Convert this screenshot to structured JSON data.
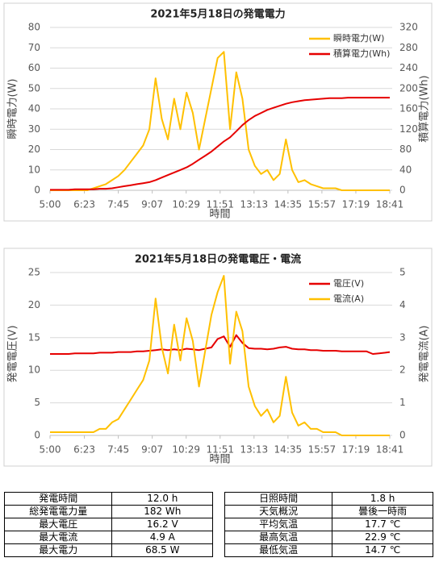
{
  "chart_data": [
    {
      "type": "line",
      "title": "2021年5月18日の発電電力",
      "xlabel": "時間",
      "ylabel": "瞬時電力(W)",
      "y2label": "積算電力(Wh)",
      "x": [
        300,
        315,
        330,
        345,
        360,
        375,
        390,
        405,
        420,
        435,
        450,
        465,
        480,
        495,
        510,
        525,
        540,
        555,
        570,
        585,
        600,
        615,
        630,
        645,
        660,
        675,
        690,
        705,
        720,
        735,
        750,
        765,
        780,
        795,
        810,
        825,
        840,
        855,
        870,
        885,
        900,
        915,
        930,
        945,
        960,
        975,
        990,
        1005,
        1020,
        1035,
        1050,
        1065,
        1080,
        1095,
        1110,
        1121
      ],
      "xlim": [
        300,
        1121
      ],
      "xticks": [
        {
          "value": 300,
          "label": "5:00"
        },
        {
          "value": 383,
          "label": "6:23"
        },
        {
          "value": 465,
          "label": "7:45"
        },
        {
          "value": 547,
          "label": "9:07"
        },
        {
          "value": 629,
          "label": "10:29"
        },
        {
          "value": 711,
          "label": "11:51"
        },
        {
          "value": 793,
          "label": "13:13"
        },
        {
          "value": 875,
          "label": "14:35"
        },
        {
          "value": 957,
          "label": "15:57"
        },
        {
          "value": 1039,
          "label": "17:19"
        },
        {
          "value": 1121,
          "label": "18:41"
        }
      ],
      "ylim": [
        0,
        80
      ],
      "yticks": [
        0,
        10,
        20,
        30,
        40,
        50,
        60,
        70,
        80
      ],
      "y2lim": [
        0,
        320
      ],
      "y2ticks": [
        0,
        40,
        80,
        120,
        160,
        200,
        240,
        280,
        320
      ],
      "grid": true,
      "legend": "upper right",
      "series": [
        {
          "name": "瞬時電力(W)",
          "color": "#ffc000",
          "values": [
            0,
            0,
            0,
            0,
            0,
            0,
            0,
            1,
            2,
            3,
            5,
            7,
            10,
            14,
            18,
            22,
            30,
            55,
            35,
            25,
            45,
            30,
            48,
            38,
            20,
            35,
            50,
            65,
            68,
            30,
            58,
            45,
            20,
            12,
            8,
            10,
            5,
            8,
            25,
            10,
            4,
            5,
            3,
            2,
            1,
            1,
            1,
            0,
            0,
            0,
            0,
            0,
            0,
            0,
            0,
            0
          ]
        },
        {
          "name": "積算電力(Wh)",
          "color": "#e60000",
          "axis": "y2",
          "values": [
            1,
            1,
            1,
            1,
            2,
            2,
            2,
            2,
            3,
            3,
            4,
            6,
            8,
            10,
            12,
            14,
            16,
            20,
            25,
            30,
            35,
            40,
            45,
            52,
            60,
            68,
            76,
            86,
            96,
            104,
            116,
            128,
            138,
            146,
            152,
            158,
            162,
            166,
            170,
            173,
            175,
            177,
            178,
            179,
            180,
            181,
            181,
            181,
            182,
            182,
            182,
            182,
            182,
            182,
            182,
            182
          ]
        }
      ]
    },
    {
      "type": "line",
      "title": "2021年5月18日の発電電圧・電流",
      "xlabel": "時間",
      "ylabel": "発電電圧(V)",
      "y2label": "発電電流(A)",
      "x": [
        300,
        315,
        330,
        345,
        360,
        375,
        390,
        405,
        420,
        435,
        450,
        465,
        480,
        495,
        510,
        525,
        540,
        555,
        570,
        585,
        600,
        615,
        630,
        645,
        660,
        675,
        690,
        705,
        720,
        735,
        750,
        765,
        780,
        795,
        810,
        825,
        840,
        855,
        870,
        885,
        900,
        915,
        930,
        945,
        960,
        975,
        990,
        1005,
        1020,
        1035,
        1050,
        1065,
        1080,
        1095,
        1110,
        1121
      ],
      "xlim": [
        300,
        1121
      ],
      "xticks": [
        {
          "value": 300,
          "label": "5:00"
        },
        {
          "value": 383,
          "label": "6:23"
        },
        {
          "value": 465,
          "label": "7:45"
        },
        {
          "value": 547,
          "label": "9:07"
        },
        {
          "value": 629,
          "label": "10:29"
        },
        {
          "value": 711,
          "label": "11:51"
        },
        {
          "value": 793,
          "label": "13:13"
        },
        {
          "value": 875,
          "label": "14:35"
        },
        {
          "value": 957,
          "label": "15:57"
        },
        {
          "value": 1039,
          "label": "17:19"
        },
        {
          "value": 1121,
          "label": "18:41"
        }
      ],
      "ylim": [
        0,
        25
      ],
      "yticks": [
        0,
        5,
        10,
        15,
        20,
        25
      ],
      "y2lim": [
        0,
        5
      ],
      "y2ticks": [
        0,
        1,
        2,
        3,
        4,
        5
      ],
      "grid": true,
      "legend": "upper right",
      "series": [
        {
          "name": "電圧(V)",
          "color": "#e60000",
          "values": [
            12.5,
            12.5,
            12.5,
            12.5,
            12.6,
            12.6,
            12.6,
            12.6,
            12.7,
            12.7,
            12.7,
            12.8,
            12.8,
            12.8,
            12.9,
            12.9,
            13.0,
            13.1,
            13.2,
            13.1,
            13.2,
            13.1,
            13.3,
            13.2,
            13.1,
            13.3,
            13.5,
            14.8,
            15.2,
            13.6,
            15.4,
            14.2,
            13.4,
            13.3,
            13.3,
            13.2,
            13.3,
            13.5,
            13.6,
            13.3,
            13.2,
            13.2,
            13.1,
            13.1,
            13.0,
            13.0,
            13.0,
            12.9,
            12.9,
            12.9,
            12.9,
            12.9,
            12.5,
            12.6,
            12.7,
            12.8
          ]
        },
        {
          "name": "電流(A)",
          "color": "#ffc000",
          "axis": "y2",
          "values": [
            0.1,
            0.1,
            0.1,
            0.1,
            0.1,
            0.1,
            0.1,
            0.1,
            0.2,
            0.2,
            0.4,
            0.5,
            0.8,
            1.1,
            1.4,
            1.7,
            2.3,
            4.2,
            2.7,
            1.9,
            3.4,
            2.3,
            3.6,
            2.9,
            1.5,
            2.6,
            3.7,
            4.4,
            4.9,
            2.2,
            3.8,
            3.2,
            1.5,
            0.9,
            0.6,
            0.8,
            0.4,
            0.6,
            1.8,
            0.7,
            0.3,
            0.4,
            0.2,
            0.2,
            0.1,
            0.1,
            0.1,
            0,
            0,
            0,
            0,
            0,
            0,
            0,
            0,
            0
          ]
        }
      ]
    }
  ],
  "table": {
    "rows": [
      [
        "発電時間",
        "12.0 h",
        "日照時間",
        "1.8 h"
      ],
      [
        "総発電電力量",
        "182 Wh",
        "天気概況",
        "曇後一時雨"
      ],
      [
        "最大電圧",
        "16.2 V",
        "平均気温",
        "17.7 ℃"
      ],
      [
        "最大電流",
        "4.9 A",
        "最高気温",
        "22.9 ℃"
      ],
      [
        "最大電力",
        "68.5 W",
        "最低気温",
        "14.7 ℃"
      ]
    ]
  }
}
